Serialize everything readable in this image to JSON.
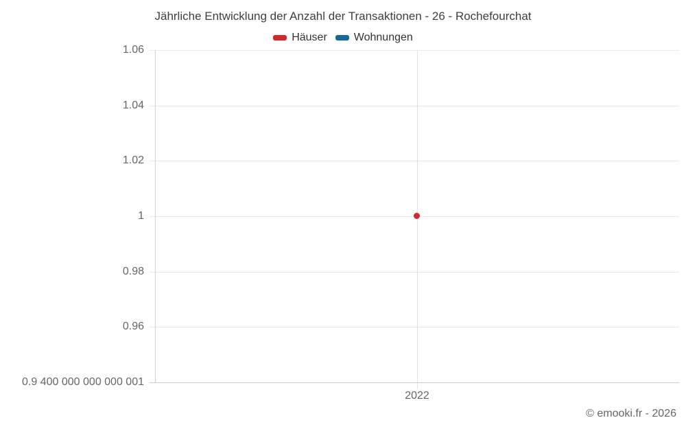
{
  "header": {
    "title": "Jährliche Entwicklung der Anzahl der Transaktionen - 26 - Rochefourchat"
  },
  "legend": {
    "items": [
      {
        "label": "Häuser",
        "color": "#d4262c"
      },
      {
        "label": "Wohnungen",
        "color": "#17689a"
      }
    ]
  },
  "footer": {
    "credits": "© emooki.fr - 2026"
  },
  "chart_data": {
    "type": "line",
    "title": "Jährliche Entwicklung der Anzahl der Transaktionen - 26 - Rochefourchat",
    "x": [
      2022
    ],
    "categories": [
      "2022"
    ],
    "series": [
      {
        "name": "Häuser",
        "color": "#d4262c",
        "values": [
          1
        ]
      },
      {
        "name": "Wohnungen",
        "color": "#17689a",
        "values": []
      }
    ],
    "xlabel": "",
    "ylabel": "",
    "ylim": [
      0.9400000000000001,
      1.06
    ],
    "grid": true,
    "legend_position": "top",
    "y_ticks": [
      {
        "value": 1.06,
        "label": "1.06"
      },
      {
        "value": 1.04,
        "label": "1.04"
      },
      {
        "value": 1.02,
        "label": "1.02"
      },
      {
        "value": 1,
        "label": "1"
      },
      {
        "value": 0.98,
        "label": "0.98"
      },
      {
        "value": 0.96,
        "label": "0.96"
      },
      {
        "value": 0.9400000000000001,
        "label": "0.9 400 000 000 000 001"
      }
    ],
    "x_ticks": [
      {
        "value": 2022,
        "label": "2022"
      }
    ],
    "points": [
      {
        "series": "Häuser",
        "x": 2022,
        "y": 1
      }
    ]
  }
}
